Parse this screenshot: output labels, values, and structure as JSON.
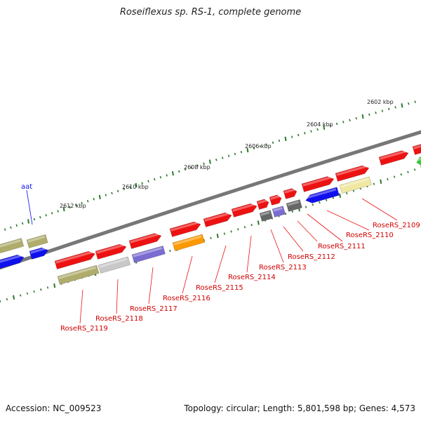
{
  "title": "Roseiflexus sp. RS-1, complete genome",
  "accession": "Accession: NC_009523",
  "summary": "Topology: circular; Length: 5,801,598 bp; Genes: 4,573",
  "colors": {
    "red": "#ee1111",
    "olive": "#b0ac6c",
    "blue": "#1010ee",
    "lavender": "#7a6cd0",
    "orange": "#ff9900",
    "gray": "#c8c8c8",
    "darkgray": "#666666",
    "paleyellow": "#f0e8a0",
    "green": "#33cc33",
    "backbone": "#777777",
    "tick": "#2a7a2a"
  },
  "ticks": [
    {
      "label": "2602 kbp"
    },
    {
      "label": "2604 kbp"
    },
    {
      "label": "2606 kbp"
    },
    {
      "label": "2608 kbp"
    },
    {
      "label": "2610 kbp"
    },
    {
      "label": "2612 kbp"
    }
  ],
  "features": [
    {
      "name": "aat"
    }
  ],
  "genes": [
    {
      "label": "RoseRS_2109"
    },
    {
      "label": "RoseRS_2110"
    },
    {
      "label": "RoseRS_2111"
    },
    {
      "label": "RoseRS_2112"
    },
    {
      "label": "RoseRS_2113"
    },
    {
      "label": "RoseRS_2114"
    },
    {
      "label": "RoseRS_2115"
    },
    {
      "label": "RoseRS_2116"
    },
    {
      "label": "RoseRS_2117"
    },
    {
      "label": "RoseRS_2118"
    },
    {
      "label": "RoseRS_2119"
    }
  ]
}
